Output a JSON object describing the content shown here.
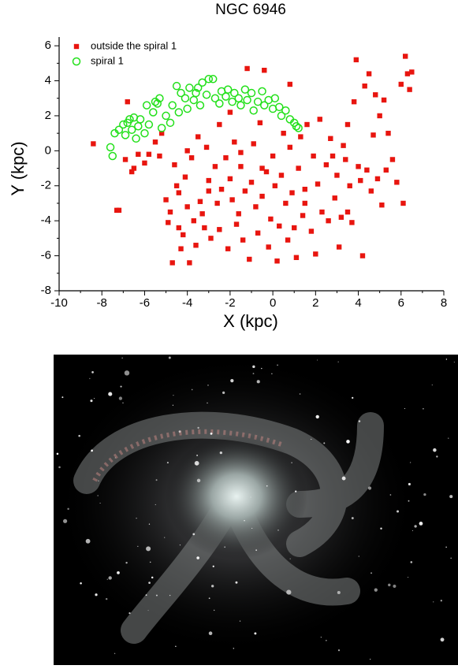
{
  "chart_data": {
    "type": "scatter",
    "title": "NGC 6946",
    "xlabel": "X (kpc)",
    "ylabel": "Y (kpc)",
    "xlim": [
      -10,
      8
    ],
    "ylim": [
      -8,
      6.5
    ],
    "xticks": [
      -10,
      -8,
      -6,
      -4,
      -2,
      0,
      2,
      4,
      6,
      8
    ],
    "yticks": [
      -8,
      -6,
      -4,
      -2,
      0,
      2,
      4,
      6
    ],
    "legend": "upper left",
    "series": [
      {
        "name": "outside the spiral 1",
        "color": "#e8150f",
        "marker": "square",
        "x": [
          -8.4,
          -7.3,
          -7.2,
          -6.9,
          -6.8,
          -6.6,
          -6.5,
          -6.3,
          -6.0,
          -5.8,
          -5.5,
          -5.3,
          -5.2,
          -4.9,
          -4.8,
          -4.7,
          -4.6,
          -4.5,
          -4.4,
          -4.3,
          -4.2,
          -4.1,
          -4.0,
          -3.9,
          -3.8,
          -3.7,
          -3.6,
          -3.5,
          -3.4,
          -3.3,
          -3.2,
          -3.1,
          -3.0,
          -2.9,
          -2.7,
          -2.6,
          -2.5,
          -2.4,
          -2.2,
          -2.1,
          -2.0,
          -1.9,
          -1.8,
          -1.7,
          -1.6,
          -1.5,
          -1.4,
          -1.3,
          -1.2,
          -1.1,
          -1.0,
          -0.9,
          -0.8,
          -0.7,
          -0.6,
          -0.5,
          -0.4,
          -0.3,
          -0.2,
          -0.1,
          0.0,
          0.1,
          0.2,
          0.3,
          0.4,
          0.5,
          0.6,
          0.7,
          0.8,
          0.9,
          1.0,
          1.1,
          1.2,
          1.3,
          1.4,
          1.5,
          1.6,
          1.8,
          1.9,
          2.0,
          2.1,
          2.2,
          2.3,
          2.5,
          2.6,
          2.7,
          2.9,
          3.0,
          3.1,
          3.2,
          3.3,
          3.4,
          3.5,
          3.6,
          3.7,
          3.8,
          3.9,
          4.0,
          4.1,
          4.2,
          4.3,
          4.4,
          4.5,
          4.6,
          4.7,
          4.8,
          4.9,
          5.0,
          5.1,
          5.2,
          5.3,
          5.4,
          5.6,
          5.8,
          6.0,
          6.1,
          6.2,
          6.3,
          6.4,
          6.5,
          -2.0,
          -1.5,
          -4.0,
          -3.0,
          -5.0,
          -4.4,
          0.8,
          1.5,
          3.5,
          2.8,
          -0.5,
          -2.5
        ],
        "values": [
          0.4,
          -3.4,
          -3.4,
          -0.5,
          2.8,
          -1.2,
          -1.0,
          -0.2,
          -0.7,
          -0.2,
          0.5,
          -0.3,
          1.0,
          -4.1,
          -3.5,
          -6.4,
          -0.8,
          -2.0,
          -2.4,
          -5.6,
          -4.8,
          -1.5,
          -3.2,
          -6.4,
          -0.4,
          -4.0,
          -5.4,
          0.8,
          -2.9,
          -3.6,
          -4.4,
          0.2,
          -1.7,
          -5.0,
          -0.9,
          -3.0,
          1.5,
          -2.2,
          -0.4,
          -5.6,
          -1.6,
          -2.8,
          0.5,
          -4.2,
          -3.6,
          -0.9,
          -5.1,
          -2.3,
          4.7,
          -6.2,
          -1.8,
          0.4,
          -3.2,
          -4.7,
          1.6,
          -2.6,
          4.6,
          -1.2,
          -5.5,
          -3.9,
          -0.3,
          -2.0,
          -6.3,
          -4.3,
          -1.4,
          1.0,
          -3.0,
          -5.1,
          0.2,
          -2.4,
          -4.4,
          -6.1,
          -1.0,
          0.8,
          -3.7,
          -2.2,
          1.5,
          -4.6,
          -0.3,
          -5.9,
          -1.9,
          1.8,
          -3.5,
          -0.8,
          -4.0,
          0.7,
          -2.7,
          -1.4,
          -5.5,
          -3.8,
          0.3,
          -0.5,
          1.5,
          -2.0,
          -4.1,
          2.8,
          5.2,
          -0.9,
          -1.7,
          -6.0,
          3.7,
          -1.1,
          4.4,
          -2.3,
          0.9,
          3.2,
          -1.6,
          2.0,
          -3.1,
          2.9,
          -1.1,
          1.0,
          -0.5,
          -1.8,
          3.8,
          -3.0,
          5.4,
          4.4,
          3.5,
          4.5,
          2.2,
          -0.1,
          0.0,
          -2.3,
          -2.8,
          -4.4,
          3.8,
          -3.0,
          -3.5,
          -0.3,
          -1.0,
          -4.5
        ]
      },
      {
        "name": "spiral 1",
        "color": "#22e01a",
        "marker": "circle",
        "x": [
          -7.6,
          -7.5,
          -7.4,
          -7.2,
          -7.0,
          -6.9,
          -6.8,
          -6.6,
          -6.5,
          -6.4,
          -6.3,
          -6.2,
          -6.0,
          -5.9,
          -5.8,
          -5.6,
          -5.5,
          -5.3,
          -5.2,
          -5.0,
          -4.8,
          -4.7,
          -4.5,
          -4.4,
          -4.3,
          -4.1,
          -4.0,
          -3.9,
          -3.7,
          -3.6,
          -3.4,
          -3.3,
          -3.1,
          -3.0,
          -2.8,
          -2.7,
          -2.5,
          -2.4,
          -2.2,
          -2.1,
          -1.9,
          -1.8,
          -1.6,
          -1.5,
          -1.3,
          -1.2,
          -1.0,
          -0.9,
          -0.7,
          -0.5,
          -0.4,
          -0.2,
          0.0,
          0.1,
          0.3,
          0.4,
          0.6,
          0.8,
          1.0,
          1.1,
          1.2,
          -5.4,
          -6.7,
          -3.5
        ],
        "values": [
          0.2,
          -0.3,
          1.0,
          1.2,
          1.5,
          0.9,
          1.6,
          1.2,
          1.9,
          0.7,
          1.4,
          1.8,
          1.0,
          2.6,
          1.5,
          2.2,
          2.8,
          3.0,
          1.3,
          2.0,
          1.6,
          2.6,
          3.7,
          2.2,
          3.3,
          3.0,
          2.4,
          3.6,
          2.9,
          3.3,
          2.6,
          3.9,
          3.2,
          4.1,
          4.1,
          3.0,
          2.7,
          3.4,
          3.1,
          3.5,
          2.8,
          3.3,
          3.0,
          2.6,
          3.5,
          2.9,
          3.3,
          2.3,
          2.8,
          3.4,
          2.6,
          2.9,
          2.4,
          3.0,
          2.5,
          2.0,
          2.3,
          1.8,
          1.6,
          1.4,
          1.3,
          2.7,
          1.8,
          3.6
        ]
      }
    ]
  }
}
